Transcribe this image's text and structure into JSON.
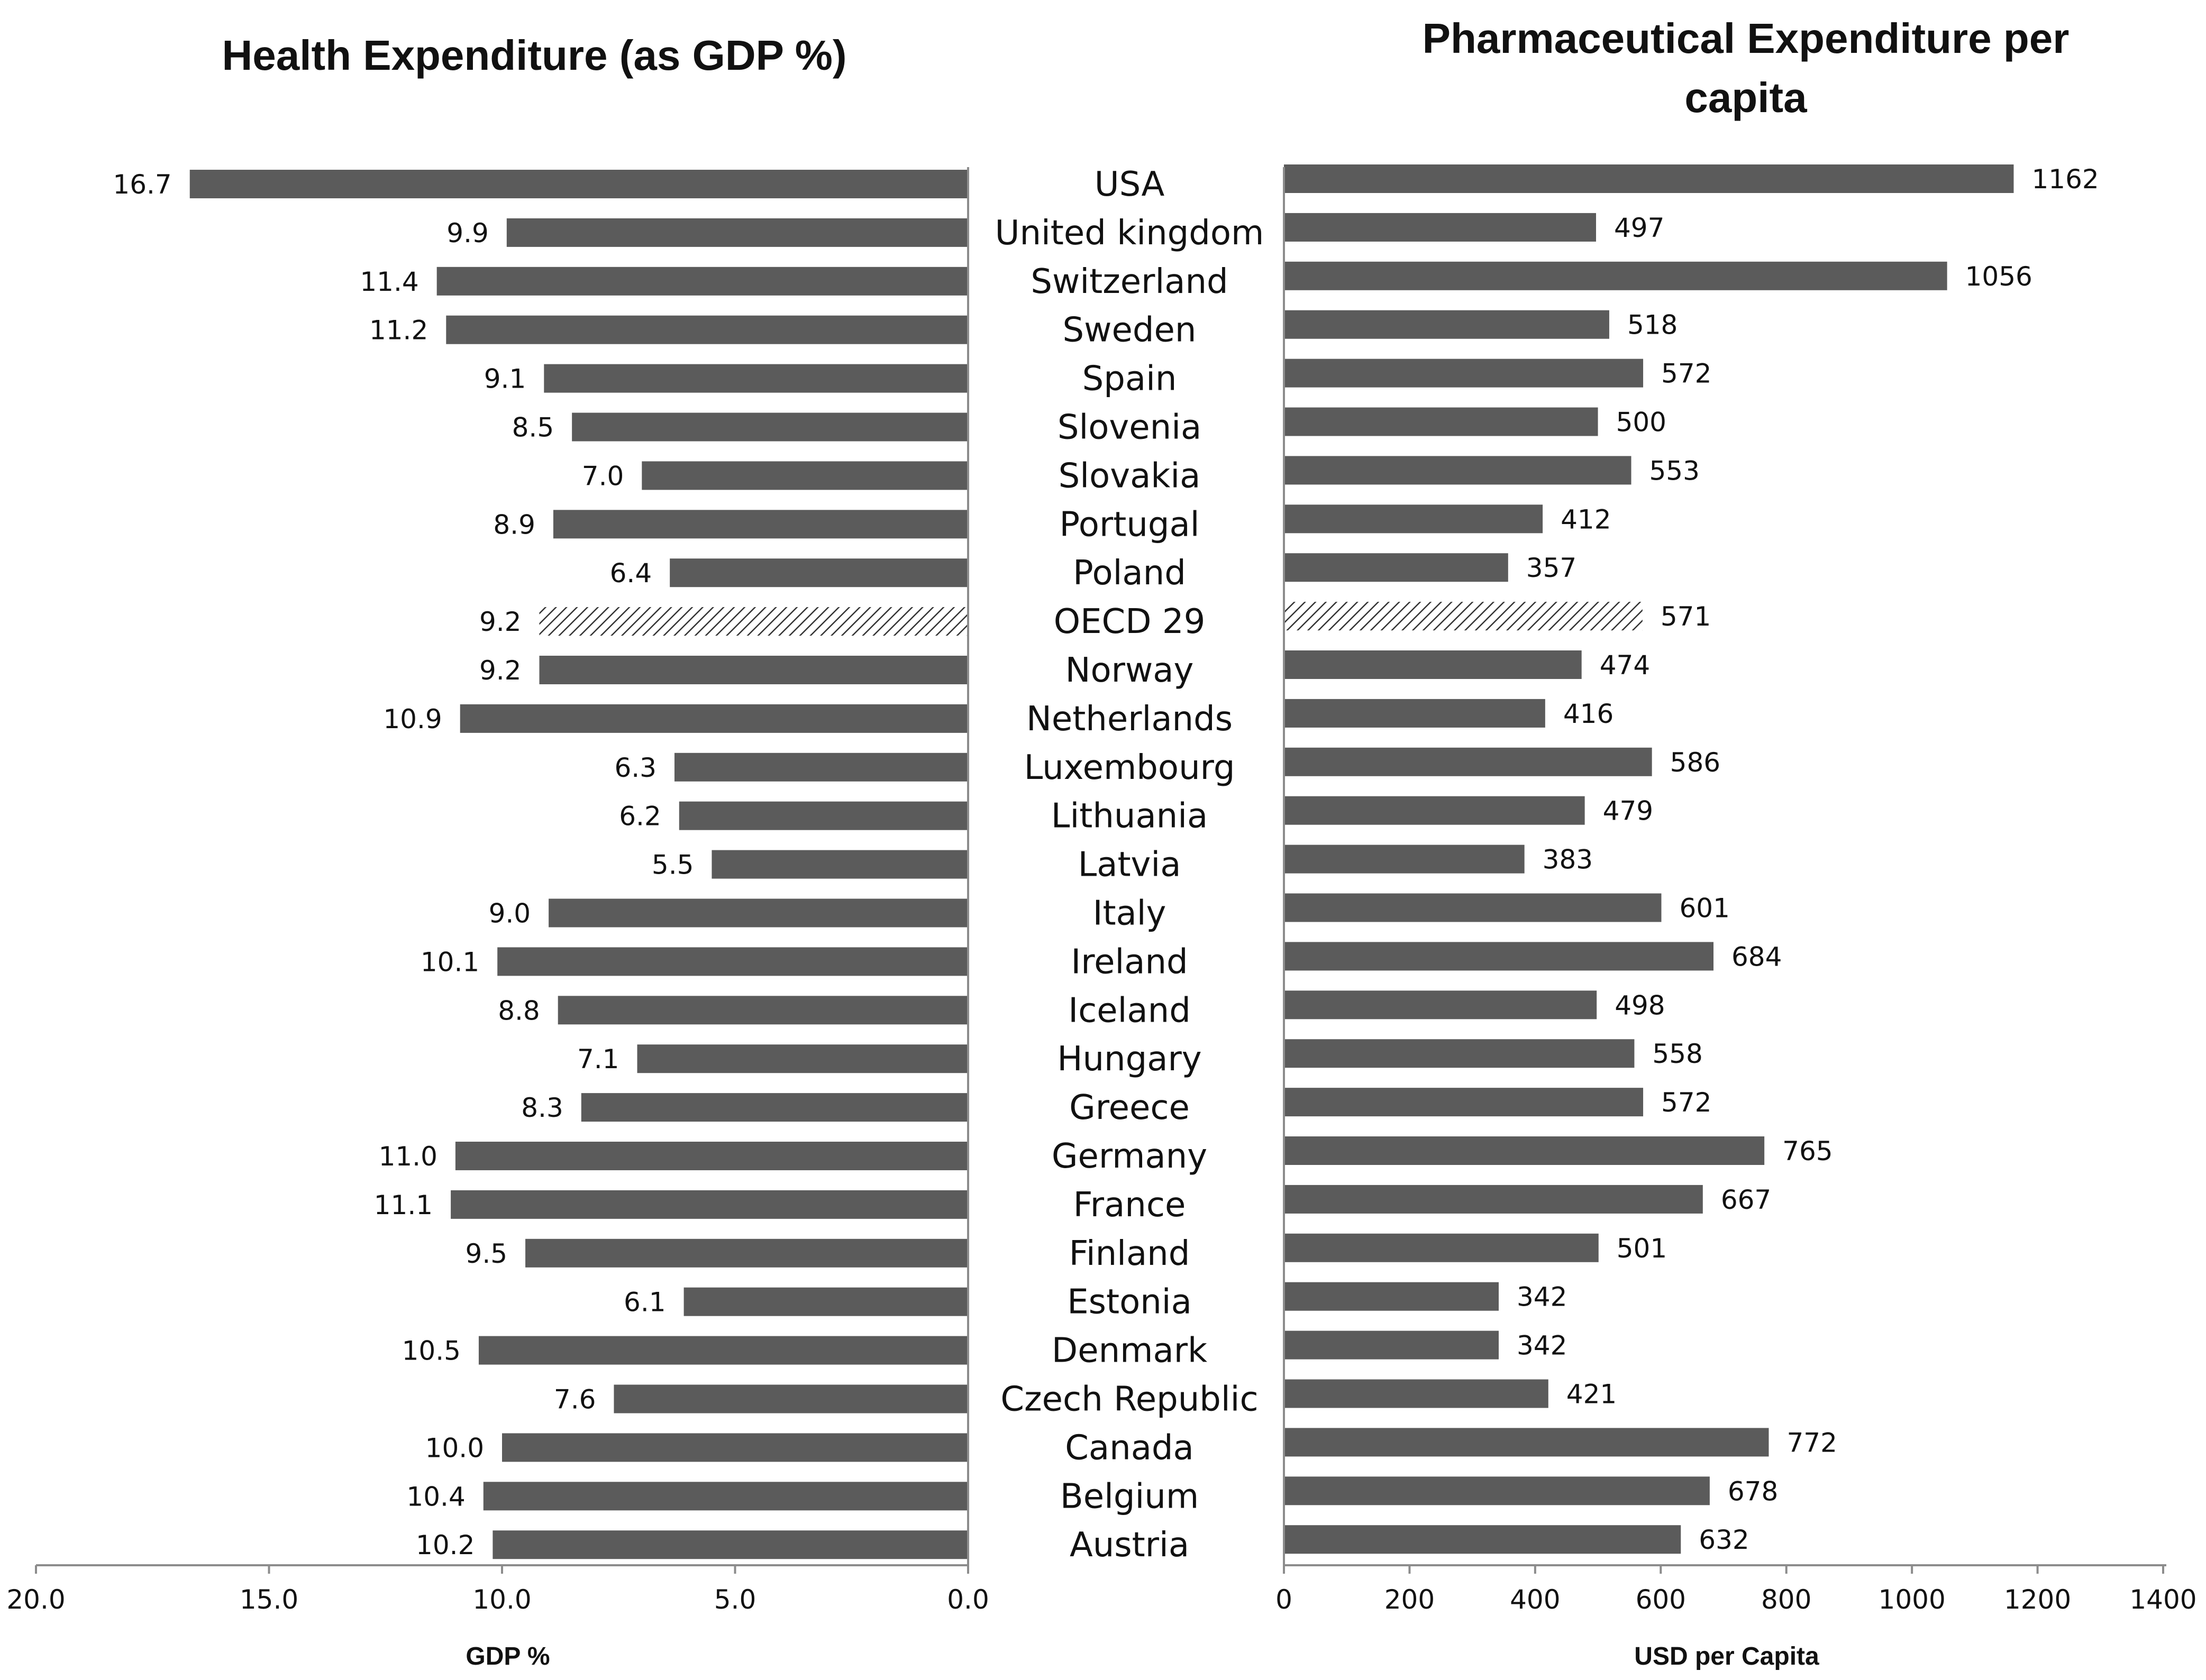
{
  "chart_data": [
    {
      "type": "bar",
      "orientation": "horizontal",
      "direction": "right-to-left",
      "title": "Health Expenditure (as GDP %)",
      "xlabel": "GDP %",
      "xlim": [
        0,
        20
      ],
      "ticks": [
        20.0,
        15.0,
        10.0,
        5.0,
        0.0
      ],
      "tick_labels": [
        "20.0",
        "15.0",
        "10.0",
        "5.0",
        "0.0"
      ],
      "categories": [
        "USA",
        "United kingdom",
        "Switzerland",
        "Sweden",
        "Spain",
        "Slovenia",
        "Slovakia",
        "Portugal",
        "Poland",
        "OECD 29",
        "Norway",
        "Netherlands",
        "Luxembourg",
        "Lithuania",
        "Latvia",
        "Italy",
        "Ireland",
        "Iceland",
        "Hungary",
        "Greece",
        "Germany",
        "France",
        "Finland",
        "Estonia",
        "Denmark",
        "Czech Republic",
        "Canada",
        "Belgium",
        "Austria"
      ],
      "values": [
        16.7,
        9.9,
        11.4,
        11.2,
        9.1,
        8.5,
        7.0,
        8.9,
        6.4,
        9.2,
        9.2,
        10.9,
        6.3,
        6.2,
        5.5,
        9.0,
        10.1,
        8.8,
        7.1,
        8.3,
        11.0,
        11.1,
        9.5,
        6.1,
        10.5,
        7.6,
        10.0,
        10.4,
        10.2
      ],
      "labels": [
        "16.7",
        "9.9",
        "11.4",
        "11.2",
        "9.1",
        "8.5",
        "7.0",
        "8.9",
        "6.4",
        "9.2",
        "9.2",
        "10.9",
        "6.3",
        "6.2",
        "5.5",
        "9.0",
        "10.1",
        "8.8",
        "7.1",
        "8.3",
        "11.0",
        "11.1",
        "9.5",
        "6.1",
        "10.5",
        "7.6",
        "10.0",
        "10.4",
        "10.2"
      ],
      "highlight_category": "OECD 29"
    },
    {
      "type": "bar",
      "orientation": "horizontal",
      "direction": "left-to-right",
      "title": "Pharmaceutical Expenditure per capita",
      "title_lines": [
        "Pharmaceutical Expenditure per",
        "capita"
      ],
      "xlabel": "USD per Capita",
      "xlim": [
        0,
        1400
      ],
      "ticks": [
        0,
        200,
        400,
        600,
        800,
        1000,
        1200,
        1400
      ],
      "tick_labels": [
        "0",
        "200",
        "400",
        "600",
        "800",
        "1000",
        "1200",
        "1400"
      ],
      "categories": [
        "USA",
        "United kingdom",
        "Switzerland",
        "Sweden",
        "Spain",
        "Slovenia",
        "Slovakia",
        "Portugal",
        "Poland",
        "OECD 29",
        "Norway",
        "Netherlands",
        "Luxembourg",
        "Lithuania",
        "Latvia",
        "Italy",
        "Ireland",
        "Iceland",
        "Hungary",
        "Greece",
        "Germany",
        "France",
        "Finland",
        "Estonia",
        "Denmark",
        "Czech Republic",
        "Canada",
        "Belgium",
        "Austria"
      ],
      "values": [
        1162,
        497,
        1056,
        518,
        572,
        500,
        553,
        412,
        357,
        571,
        474,
        416,
        586,
        479,
        383,
        601,
        684,
        498,
        558,
        572,
        765,
        667,
        501,
        342,
        342,
        421,
        772,
        678,
        632
      ],
      "labels": [
        "1162",
        "497",
        "1056",
        "518",
        "572",
        "500",
        "553",
        "412",
        "357",
        "571",
        "474",
        "416",
        "586",
        "479",
        "383",
        "601",
        "684",
        "498",
        "558",
        "572",
        "765",
        "667",
        "501",
        "342",
        "342",
        "421",
        "772",
        "678",
        "632"
      ],
      "highlight_category": "OECD 29"
    }
  ],
  "colors": {
    "bar": "#5b5b5b",
    "highlight_hatch": "#333333",
    "axis": "#8c8c8c",
    "text": "#111111"
  }
}
